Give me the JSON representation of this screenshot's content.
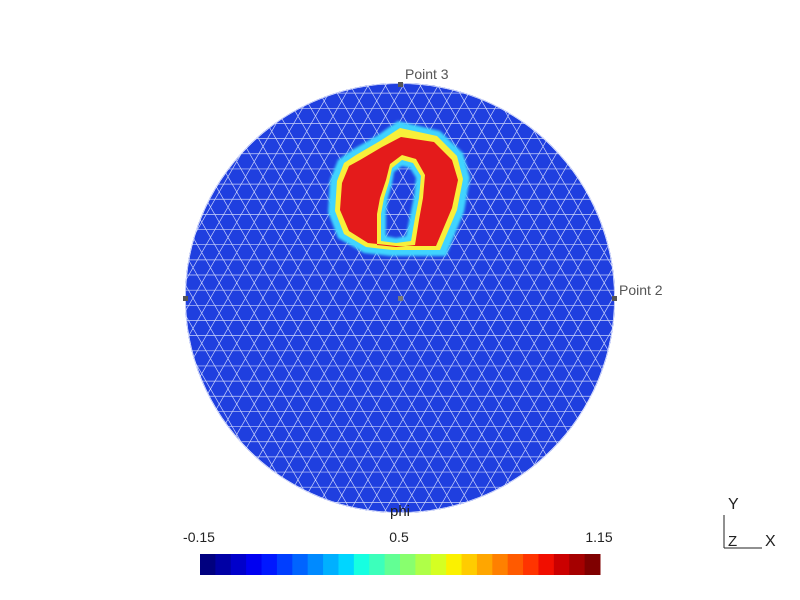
{
  "points": {
    "top_label": "Point 3",
    "right_label": "Point 2"
  },
  "scalar_name": "phi",
  "colorbar": {
    "min_label": "-0.15",
    "mid_label": "0.5",
    "max_label": "1.15",
    "colors": [
      "#00007f",
      "#0000a5",
      "#0000cb",
      "#0000f1",
      "#0018ff",
      "#003eff",
      "#0064ff",
      "#008aff",
      "#00b0ff",
      "#00d6ff",
      "#16ffe1",
      "#3cffbb",
      "#62ff94",
      "#88ff6e",
      "#afff48",
      "#d5ff22",
      "#fbf100",
      "#ffcc00",
      "#ffa600",
      "#ff8000",
      "#ff5a00",
      "#ff3400",
      "#f10e00",
      "#cb0000",
      "#a50000",
      "#7f0000"
    ]
  },
  "axes": {
    "y_label": "Y",
    "z_label": "Z",
    "x_label": "X"
  },
  "colors": {
    "disk_fill": "#1f3fdf",
    "mesh_line": "#e8ecff",
    "hot": "#e41b1b",
    "cyan": "#3fd4ff",
    "yellow": "#f8ef3a"
  }
}
